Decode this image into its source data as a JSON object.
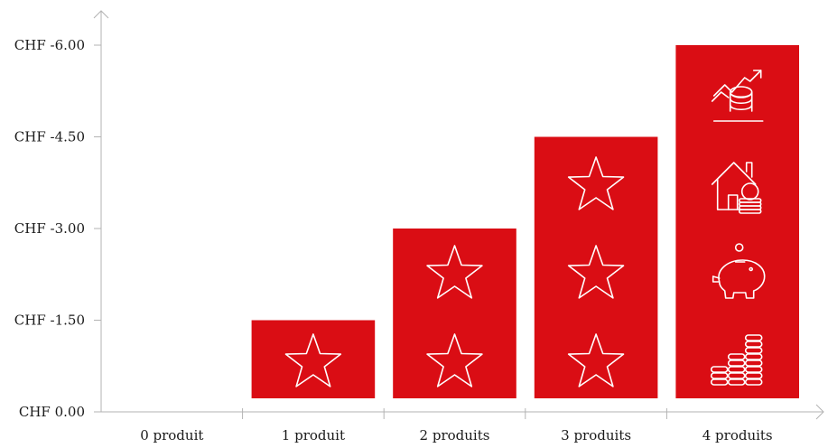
{
  "chart_data": {
    "type": "bar",
    "categories": [
      "0 produit",
      "1 produit",
      "2 produits",
      "3 produits",
      "4 produits"
    ],
    "values": [
      0,
      -1.5,
      -3.0,
      -4.5,
      -6.0
    ],
    "y_ticks": [
      "CHF 0.00",
      "CHF -1.50",
      "CHF -3.00",
      "CHF -4.50",
      "CHF -6.00"
    ],
    "y_tick_values": [
      0,
      -1.5,
      -3.0,
      -4.5,
      -6.0
    ],
    "ylim": [
      0,
      -6.0
    ],
    "title": "",
    "xlabel": "",
    "ylabel": "",
    "grid": false,
    "legend": "none",
    "bar_color": "#da0d14",
    "bar_icons": [
      [],
      [
        "star-icon"
      ],
      [
        "star-icon",
        "star-icon"
      ],
      [
        "star-icon",
        "star-icon",
        "star-icon"
      ],
      [
        "coin-stack-icon",
        "piggy-bank-icon",
        "house-coins-icon",
        "investment-growth-icon"
      ]
    ]
  }
}
